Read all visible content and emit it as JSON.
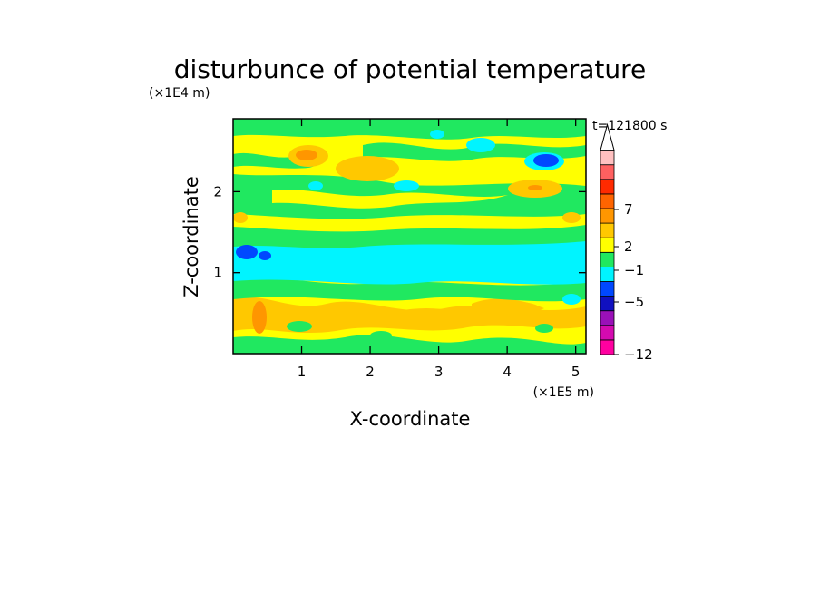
{
  "chart_data": {
    "type": "heatmap",
    "title": "disturbunce of potential temperature",
    "xlabel": "X-coordinate",
    "ylabel": "Z-coordinate",
    "x_unit": "(×1E5 m)",
    "y_unit": "(×1E4 m)",
    "time_label": "t=121800 s",
    "xlim": [
      0,
      5.15
    ],
    "ylim": [
      0,
      2.9
    ],
    "x_ticks": [
      1,
      2,
      3,
      4,
      5
    ],
    "x_tick_labels": [
      "1",
      "2",
      "3",
      "4",
      "5"
    ],
    "y_ticks": [
      1,
      2
    ],
    "y_tick_labels": [
      "1",
      "2"
    ],
    "colorbar": {
      "tick_labels": [
        "7",
        "2",
        "−1",
        "−5",
        "−12"
      ],
      "colors": [
        "#ff00a0",
        "#d40ab0",
        "#9a10b8",
        "#1010c0",
        "#0048ff",
        "#00f4ff",
        "#20e860",
        "#ffff00",
        "#ffc800",
        "#ff9600",
        "#ff6400",
        "#ff2a00",
        "#ff6060",
        "#ffc0c0"
      ],
      "extend": "max"
    },
    "bands": [
      {
        "z_from": 0.0,
        "z_to": 0.4,
        "level": "yellow-green"
      },
      {
        "z_from": 0.4,
        "z_to": 0.8,
        "level": "yellow-orange"
      },
      {
        "z_from": 0.8,
        "z_to": 0.95,
        "level": "green"
      },
      {
        "z_from": 0.95,
        "z_to": 1.4,
        "level": "cyan"
      },
      {
        "z_from": 1.4,
        "z_to": 1.6,
        "level": "green"
      },
      {
        "z_from": 1.6,
        "z_to": 1.8,
        "level": "yellow"
      },
      {
        "z_from": 1.8,
        "z_to": 2.3,
        "level": "green-yellow"
      },
      {
        "z_from": 2.3,
        "z_to": 2.9,
        "level": "yellow-orange-green"
      }
    ]
  }
}
